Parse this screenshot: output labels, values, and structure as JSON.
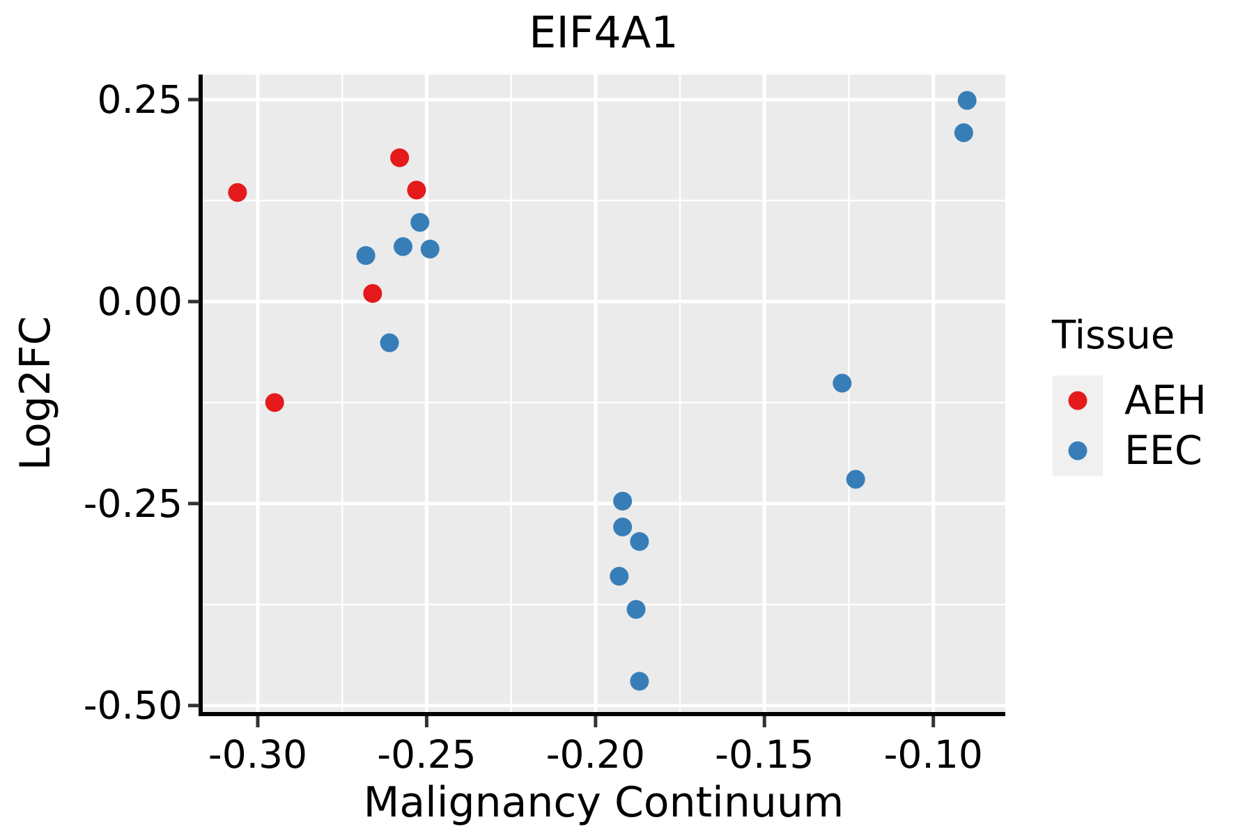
{
  "chart_data": {
    "type": "scatter",
    "title": "EIF4A1",
    "xlabel": "Malignancy Continuum",
    "ylabel": "Log2FC",
    "xlim": [
      -0.3165,
      -0.0787
    ],
    "ylim": [
      -0.508,
      0.281
    ],
    "x_ticks": [
      -0.3,
      -0.25,
      -0.2,
      -0.15,
      -0.1
    ],
    "x_tick_labels": [
      "-0.30",
      "-0.25",
      "-0.20",
      "-0.15",
      "-0.10"
    ],
    "y_ticks": [
      0.25,
      0.0,
      -0.25,
      -0.5
    ],
    "y_tick_labels": [
      "0.25",
      "0.00",
      "-0.25",
      "-0.50"
    ],
    "grid": {
      "background": "#EBEBEB",
      "major_color": "#FFFFFF",
      "minor_color": "#FFFFFF",
      "minor_on": true
    },
    "axis_color": "#000000",
    "tick_color": "#333333",
    "text_color": "#000000",
    "marker_radius": 13.5,
    "legend": {
      "title": "Tissue",
      "position": "right",
      "key_background": "#F0F0F0",
      "entries": [
        {
          "label": "AEH",
          "color": "#E41A1C"
        },
        {
          "label": "EEC",
          "color": "#377EB8"
        }
      ]
    },
    "series": [
      {
        "name": "AEH",
        "color": "#E41A1C",
        "points": [
          [
            -0.306,
            0.135
          ],
          [
            -0.295,
            -0.125
          ],
          [
            -0.258,
            0.178
          ],
          [
            -0.253,
            0.138
          ],
          [
            -0.266,
            0.01
          ]
        ]
      },
      {
        "name": "EEC",
        "color": "#377EB8",
        "points": [
          [
            -0.268,
            0.057
          ],
          [
            -0.257,
            0.068
          ],
          [
            -0.252,
            0.098
          ],
          [
            -0.249,
            0.065
          ],
          [
            -0.261,
            -0.051
          ],
          [
            -0.192,
            -0.247
          ],
          [
            -0.192,
            -0.279
          ],
          [
            -0.187,
            -0.297
          ],
          [
            -0.193,
            -0.34
          ],
          [
            -0.188,
            -0.381
          ],
          [
            -0.187,
            -0.47
          ],
          [
            -0.127,
            -0.101
          ],
          [
            -0.123,
            -0.22
          ],
          [
            -0.09,
            0.249
          ],
          [
            -0.091,
            0.209
          ]
        ]
      }
    ]
  }
}
